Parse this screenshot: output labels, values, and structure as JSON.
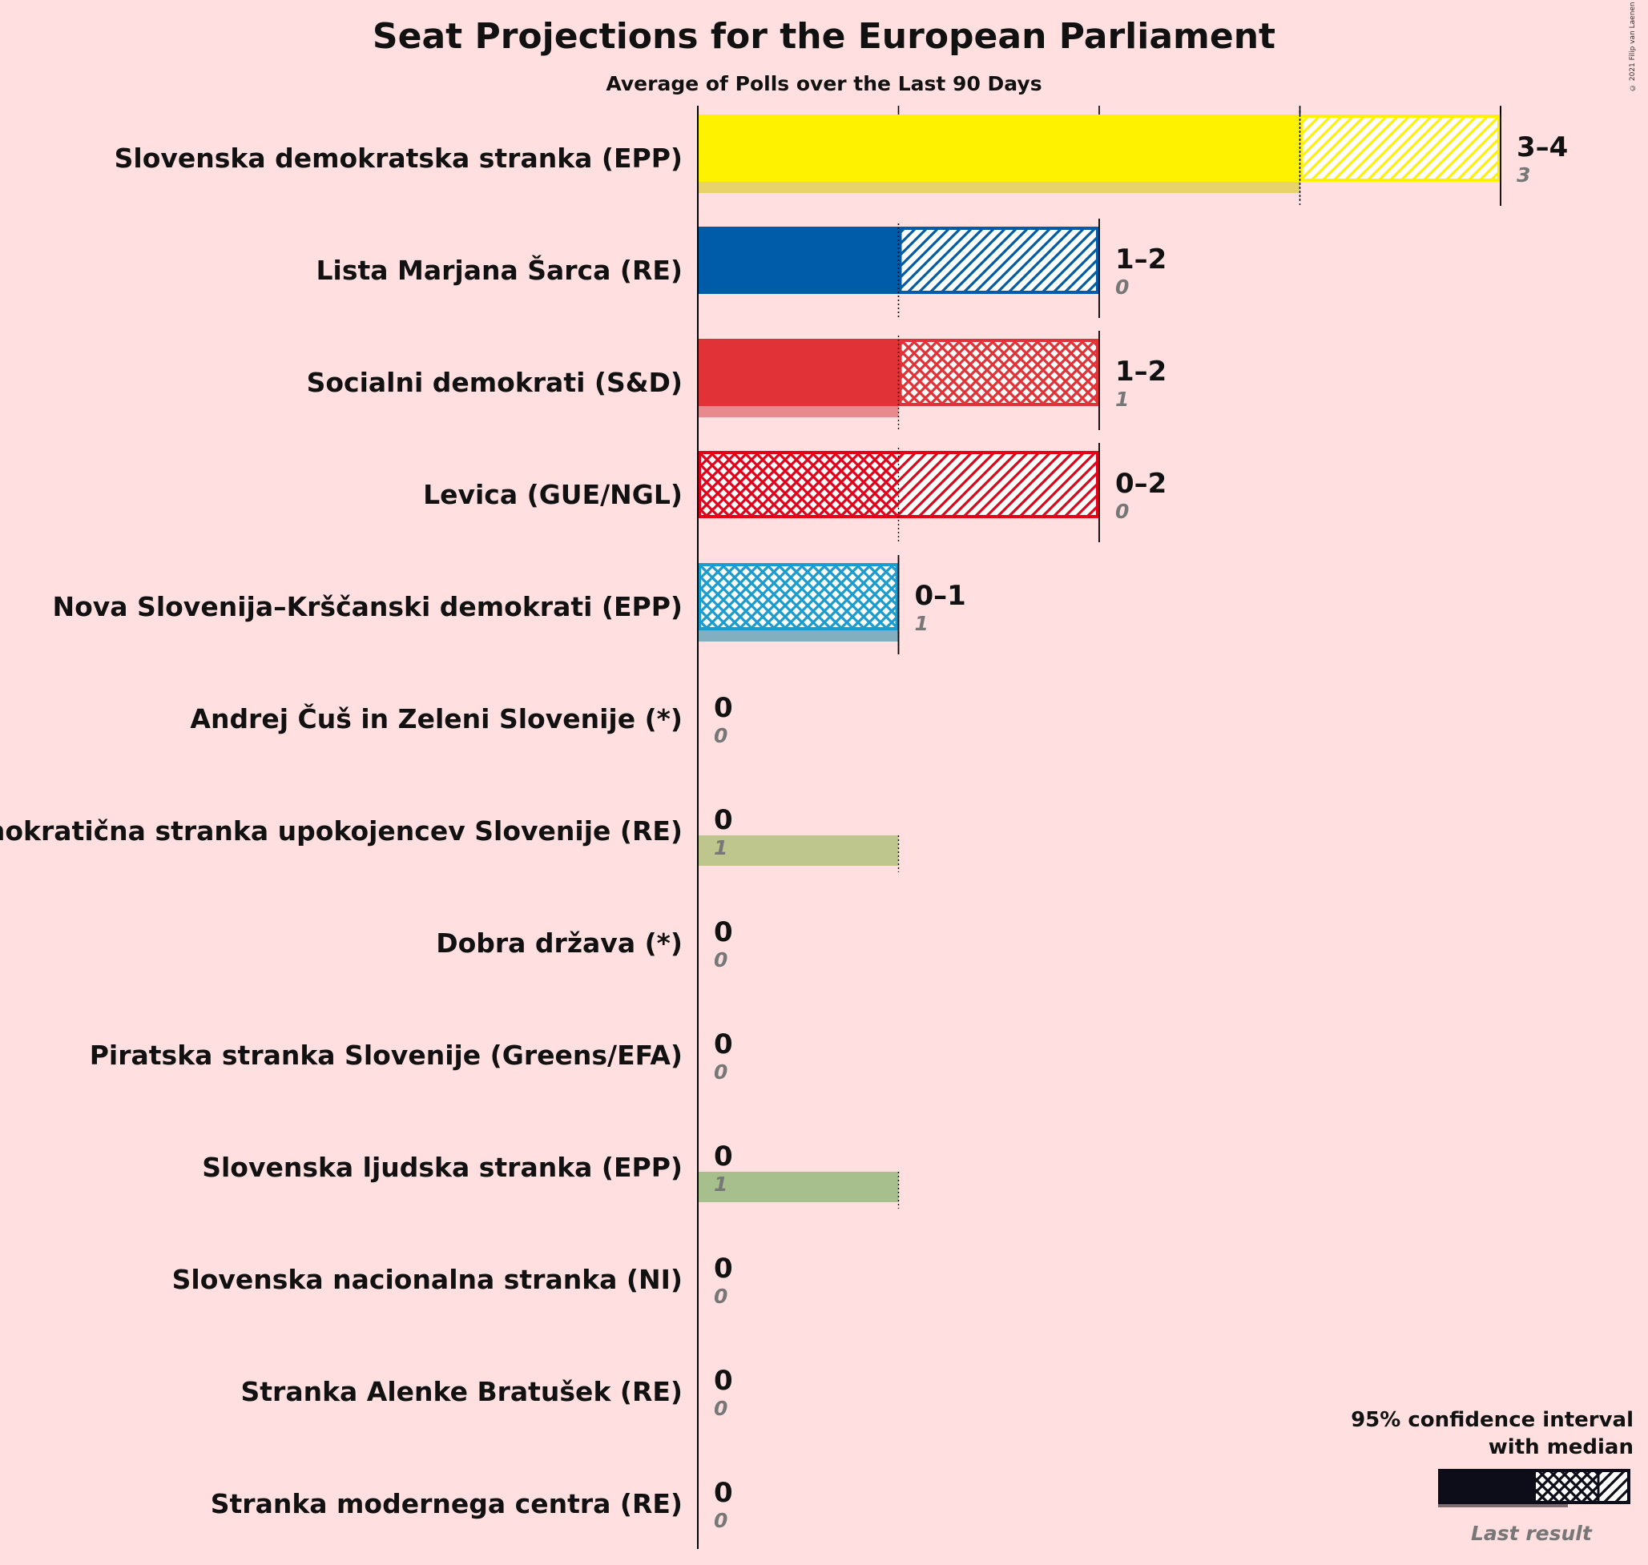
{
  "title": "Seat Projections for the European Parliament",
  "subtitle": "Average of Polls over the Last 90 Days",
  "copyright": "© 2021 Filip van Laenen",
  "legend": {
    "title_line1": "95% confidence interval",
    "title_line2": "with median",
    "last_result": "Last result"
  },
  "chart_data": {
    "type": "bar",
    "orientation": "horizontal",
    "title": "Seat Projections for the European Parliament",
    "subtitle": "Average of Polls over the Last 90 Days",
    "xlim": [
      0,
      4
    ],
    "gridlines": [
      1,
      2,
      3,
      4
    ],
    "parties": [
      {
        "name": "Slovenska demokratska stranka (EPP)",
        "low": 3,
        "median": 3,
        "high": 4,
        "last": 3,
        "label": "3–4",
        "last_label": "3",
        "color": "#fff200",
        "last_color": "#e8d36a",
        "pattern": "hatch"
      },
      {
        "name": "Lista Marjana Šarca (RE)",
        "low": 1,
        "median": 1,
        "high": 2,
        "last": 0,
        "label": "1–2",
        "last_label": "0",
        "color": "#005ba8",
        "last_color": "#7f9fc8",
        "pattern": "hatch"
      },
      {
        "name": "Socialni demokrati (S&D)",
        "low": 1,
        "median": 2,
        "high": 2,
        "last": 1,
        "label": "1–2",
        "last_label": "1",
        "color": "#e13237",
        "last_color": "#e88a8d",
        "pattern": "cross"
      },
      {
        "name": "Levica (GUE/NGL)",
        "low": 0,
        "median": 1,
        "high": 2,
        "last": 0,
        "label": "0–2",
        "last_label": "0",
        "color": "#e3001b",
        "last_color": "#e88a8d",
        "pattern": "cross-hatch"
      },
      {
        "name": "Nova Slovenija–Krščanski demokrati (EPP)",
        "low": 0,
        "median": 1,
        "high": 1,
        "last": 1,
        "label": "0–1",
        "last_label": "1",
        "color": "#1b9ccf",
        "last_color": "#82afc0",
        "pattern": "cross"
      },
      {
        "name": "Andrej Čuš in Zeleni Slovenije (*)",
        "low": 0,
        "median": 0,
        "high": 0,
        "last": 0,
        "label": "0",
        "last_label": "0",
        "color": "#5aa02c",
        "last_color": "#a8c08a",
        "pattern": "none"
      },
      {
        "name": "Demokratična stranka upokojencev Slovenije (RE)",
        "low": 0,
        "median": 0,
        "high": 0,
        "last": 1,
        "label": "0",
        "last_label": "1",
        "color": "#9bb240",
        "last_color": "#bfc68d",
        "pattern": "none"
      },
      {
        "name": "Dobra država (*)",
        "low": 0,
        "median": 0,
        "high": 0,
        "last": 0,
        "label": "0",
        "last_label": "0",
        "color": "#888888",
        "last_color": "#bbbbbb",
        "pattern": "none"
      },
      {
        "name": "Piratska stranka Slovenije (Greens/EFA)",
        "low": 0,
        "median": 0,
        "high": 0,
        "last": 0,
        "label": "0",
        "last_label": "0",
        "color": "#000000",
        "last_color": "#999999",
        "pattern": "none"
      },
      {
        "name": "Slovenska ljudska stranka (EPP)",
        "low": 0,
        "median": 0,
        "high": 0,
        "last": 1,
        "label": "0",
        "last_label": "1",
        "color": "#4f9a3a",
        "last_color": "#a6bf8c",
        "pattern": "none"
      },
      {
        "name": "Slovenska nacionalna stranka (NI)",
        "low": 0,
        "median": 0,
        "high": 0,
        "last": 0,
        "label": "0",
        "last_label": "0",
        "color": "#333399",
        "last_color": "#999999",
        "pattern": "none"
      },
      {
        "name": "Stranka Alenke Bratušek (RE)",
        "low": 0,
        "median": 0,
        "high": 0,
        "last": 0,
        "label": "0",
        "last_label": "0",
        "color": "#ff8800",
        "last_color": "#999999",
        "pattern": "none"
      },
      {
        "name": "Stranka modernega centra (RE)",
        "low": 0,
        "median": 0,
        "high": 0,
        "last": 0,
        "label": "0",
        "last_label": "0",
        "color": "#00aaff",
        "last_color": "#999999",
        "pattern": "none"
      }
    ]
  }
}
